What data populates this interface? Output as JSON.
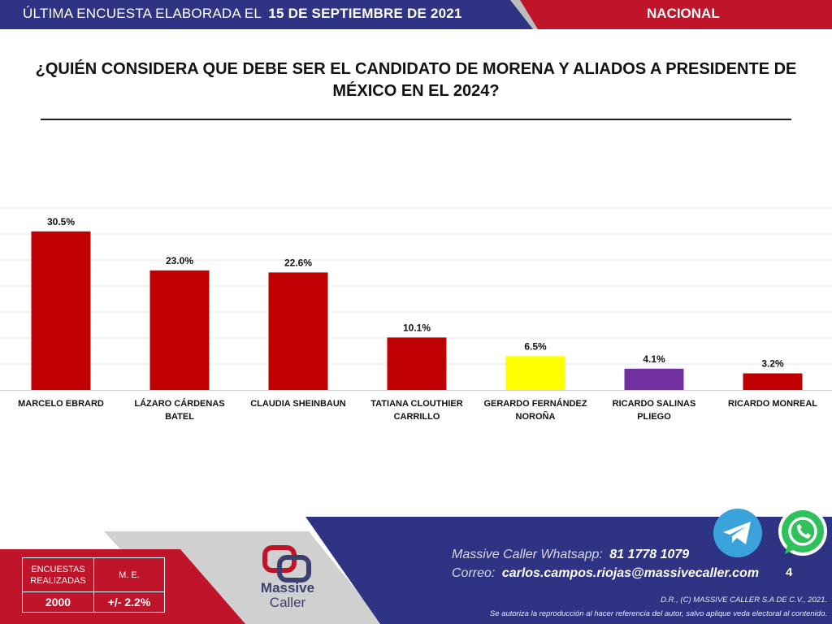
{
  "header": {
    "survey_label": "ÚLTIMA ENCUESTA ELABORADA EL",
    "survey_date": "15 DE SEPTIEMBRE DE 2021",
    "region": "NACIONAL"
  },
  "title": "¿QUIÉN CONSIDERA QUE DEBE SER EL CANDIDATO DE MORENA Y ALIADOS A PRESIDENTE DE MÉXICO EN EL 2024?",
  "chart_data": {
    "type": "bar",
    "categories": [
      [
        "MARCELO EBRARD"
      ],
      [
        "LÁZARO CÁRDENAS BATEL"
      ],
      [
        "CLAUDIA SHEINBAUN"
      ],
      [
        "TATIANA CLOUTHIER",
        "CARRILLO"
      ],
      [
        "GERARDO FERNÁNDEZ",
        "NOROÑA"
      ],
      [
        "RICARDO SALINAS PLIEGO"
      ],
      [
        "RICARDO MONREAL"
      ]
    ],
    "values": [
      30.5,
      23.0,
      22.6,
      10.1,
      6.5,
      4.1,
      3.2
    ],
    "value_labels": [
      "30.5%",
      "23.0%",
      "22.6%",
      "10.1%",
      "6.5%",
      "4.1%",
      "3.2%"
    ],
    "colors": [
      "#c00000",
      "#c00000",
      "#c00000",
      "#c00000",
      "#ffff00",
      "#7030a0",
      "#c00000"
    ],
    "ylim": [
      0,
      35
    ],
    "grid": true
  },
  "stats": {
    "col1_header": "ENCUESTAS REALIZADAS",
    "col2_header": "M. E.",
    "col1_value": "2000",
    "col2_value": "+/- 2.2%"
  },
  "logo": {
    "word1": "Massive",
    "word2": "Caller"
  },
  "contact": {
    "whatsapp_label": "Massive Caller Whatsapp:",
    "whatsapp_value": "81 1778 1079",
    "email_label": "Correo:",
    "email_value": "carlos.campos.riojas@massivecaller.com"
  },
  "page_number": "4",
  "copyright": {
    "line1": "D.R., (C) MASSIVE CALLER S.A DE C.V., 2021.",
    "line2": "Se autoriza la reproducción al hacer referencia del autor, salvo aplique veda electoral al contenido."
  },
  "colors": {
    "brand_red": "#c0142a",
    "brand_navy": "#2e3384",
    "gray_band": "#bdbdbd"
  }
}
